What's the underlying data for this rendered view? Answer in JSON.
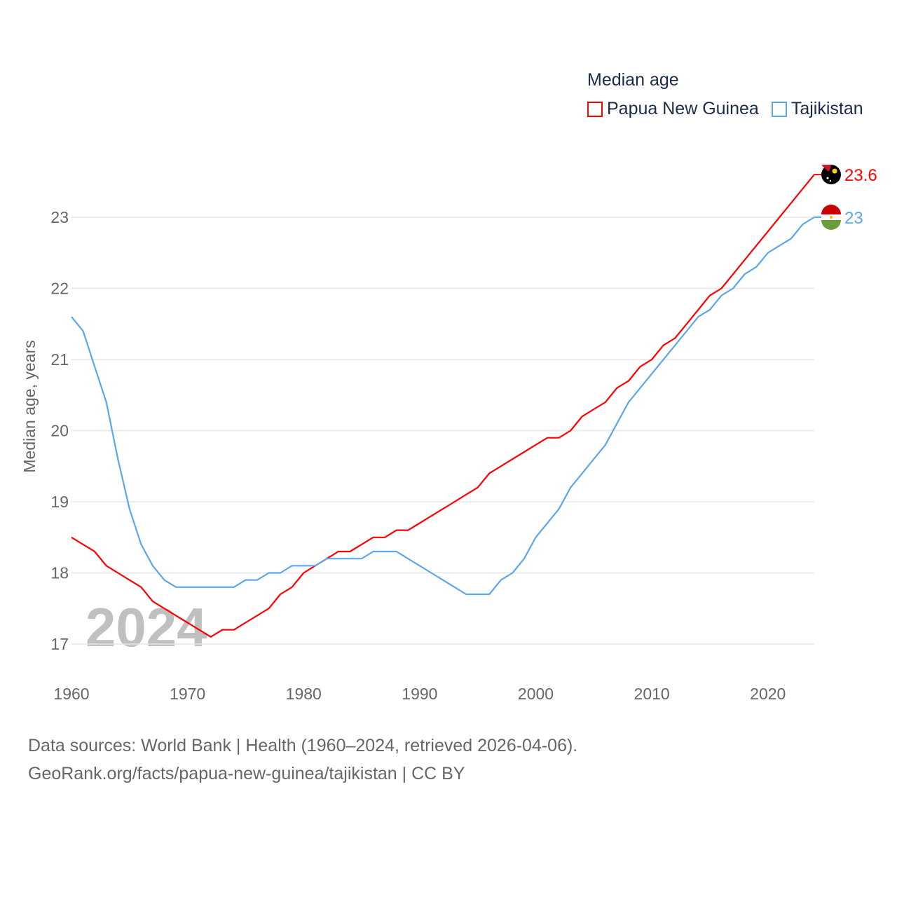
{
  "chart_data": {
    "type": "line",
    "title": "Median age",
    "xlabel": "",
    "ylabel": "Median age, years",
    "xlim": [
      1960,
      2024
    ],
    "ylim": [
      16.6,
      23.9
    ],
    "yticks": [
      17,
      18,
      19,
      20,
      21,
      22,
      23
    ],
    "xticks": [
      1960,
      1970,
      1980,
      1990,
      2000,
      2010,
      2020
    ],
    "grid": true,
    "legend_placement": "top-right",
    "year_watermark": "2024",
    "x": [
      1960,
      1961,
      1962,
      1963,
      1964,
      1965,
      1966,
      1967,
      1968,
      1969,
      1970,
      1971,
      1972,
      1973,
      1974,
      1975,
      1976,
      1977,
      1978,
      1979,
      1980,
      1981,
      1982,
      1983,
      1984,
      1985,
      1986,
      1987,
      1988,
      1989,
      1990,
      1991,
      1992,
      1993,
      1994,
      1995,
      1996,
      1997,
      1998,
      1999,
      2000,
      2001,
      2002,
      2003,
      2004,
      2005,
      2006,
      2007,
      2008,
      2009,
      2010,
      2011,
      2012,
      2013,
      2014,
      2015,
      2016,
      2017,
      2018,
      2019,
      2020,
      2021,
      2022,
      2023,
      2024
    ],
    "series": [
      {
        "name": "Papua New Guinea",
        "color": "#ff0000",
        "end_label": "23.6",
        "values": [
          18.5,
          18.4,
          18.3,
          18.1,
          18.0,
          17.9,
          17.8,
          17.6,
          17.5,
          17.4,
          17.3,
          17.2,
          17.1,
          17.2,
          17.2,
          17.3,
          17.4,
          17.5,
          17.7,
          17.8,
          18.0,
          18.1,
          18.2,
          18.3,
          18.3,
          18.4,
          18.5,
          18.5,
          18.6,
          18.6,
          18.7,
          18.8,
          18.9,
          19.0,
          19.1,
          19.2,
          19.4,
          19.5,
          19.6,
          19.7,
          19.8,
          19.9,
          19.9,
          20.0,
          20.2,
          20.3,
          20.4,
          20.6,
          20.7,
          20.9,
          21.0,
          21.2,
          21.3,
          21.5,
          21.7,
          21.9,
          22.0,
          22.2,
          22.4,
          22.6,
          22.8,
          23.0,
          23.2,
          23.4,
          23.6
        ]
      },
      {
        "name": "Tajikistan",
        "color": "#5ba7eb",
        "end_label": "23",
        "values": [
          21.6,
          21.4,
          20.9,
          20.4,
          19.6,
          18.9,
          18.4,
          18.1,
          17.9,
          17.8,
          17.8,
          17.8,
          17.8,
          17.8,
          17.8,
          17.9,
          17.9,
          18.0,
          18.0,
          18.1,
          18.1,
          18.1,
          18.2,
          18.2,
          18.2,
          18.2,
          18.3,
          18.3,
          18.3,
          18.2,
          18.1,
          18.0,
          17.9,
          17.8,
          17.7,
          17.7,
          17.7,
          17.9,
          18.0,
          18.2,
          18.5,
          18.7,
          18.9,
          19.2,
          19.4,
          19.6,
          19.8,
          20.1,
          20.4,
          20.6,
          20.8,
          21.0,
          21.2,
          21.4,
          21.6,
          21.7,
          21.9,
          22.0,
          22.2,
          22.3,
          22.5,
          22.6,
          22.7,
          22.9,
          23.0
        ]
      }
    ]
  },
  "source": {
    "line1": "Data sources: World Bank | Health (1960–2024, retrieved 2026-04-06).",
    "line2": "GeoRank.org/facts/papua-new-guinea/tajikistan | CC BY"
  }
}
